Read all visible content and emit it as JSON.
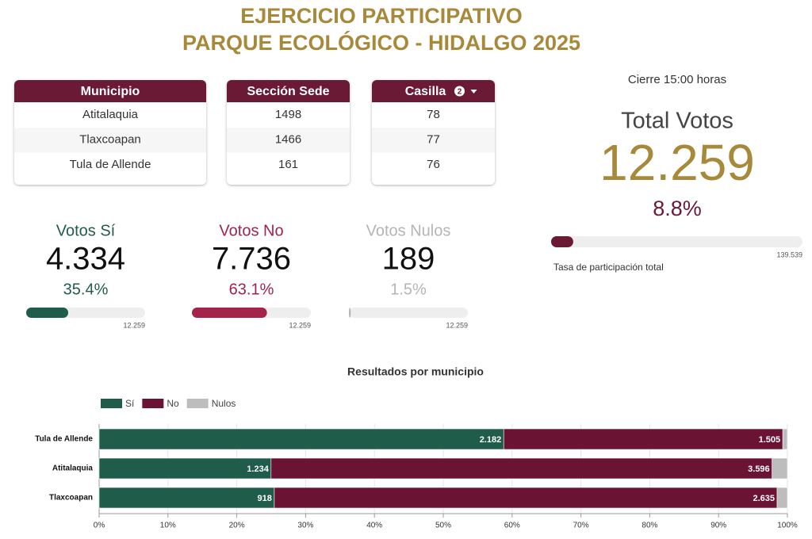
{
  "header": {
    "title_line1": "EJERCICIO PARTICIPATIVO",
    "title_line2": "PARQUE ECOLÓGICO - HIDALGO 2025"
  },
  "filters": [
    {
      "header": "Municipio",
      "rows": [
        "Atitalaquia",
        "Tlaxcoapan",
        "Tula de Allende"
      ]
    },
    {
      "header": "Sección Sede",
      "rows": [
        "1498",
        "1466",
        "161"
      ]
    },
    {
      "header": "Casilla",
      "badge": "2",
      "rows": [
        "78",
        "77",
        "76"
      ]
    }
  ],
  "summary": {
    "closing": "Cierre 15:00 horas",
    "total_label": "Total Votos",
    "total": {
      "value": 12259,
      "label": "12.259"
    },
    "participation": {
      "value": 8.8,
      "label": "8.8%"
    },
    "registry": {
      "value": 139539,
      "label": "139.539"
    },
    "participation_label": "Tasa de participación total"
  },
  "kpis": [
    {
      "name": "Votos Sí",
      "color": "#1f5c4a",
      "count": {
        "value": 4334,
        "label": "4.334"
      },
      "share": {
        "value": 35.4,
        "label": "35.4%"
      },
      "max": {
        "value": 12259,
        "label": "12.259"
      }
    },
    {
      "name": "Votos No",
      "color": "#a3234a",
      "count": {
        "value": 7736,
        "label": "7.736"
      },
      "share": {
        "value": 63.1,
        "label": "63.1%"
      },
      "max": {
        "value": 12259,
        "label": "12.259"
      }
    },
    {
      "name": "Votos Nulos",
      "color": "#b5b5b5",
      "count": {
        "value": 189,
        "label": "189"
      },
      "share": {
        "value": 1.5,
        "label": "1.5%"
      },
      "max": {
        "value": 12259,
        "label": "12.259"
      }
    }
  ],
  "chart_data": {
    "type": "bar",
    "orientation": "horizontal",
    "stacked": "percent",
    "title": "Resultados por municipio",
    "categories": [
      "Tula de Allende",
      "Atitalaquia",
      "Tlaxcoapan"
    ],
    "series": [
      {
        "name": "Sí",
        "color": "#1f5c4a",
        "values": [
          2182,
          1234,
          918
        ],
        "value_labels": [
          "2.182",
          "1.234",
          "918"
        ]
      },
      {
        "name": "No",
        "color": "#6b1333",
        "values": [
          1505,
          3596,
          2635
        ],
        "value_labels": [
          "1.505",
          "3.596",
          "2.635"
        ]
      },
      {
        "name": "Nulos",
        "color": "#bdbdbd",
        "values": [
          25,
          110,
          54
        ]
      }
    ],
    "xlim": [
      0,
      100
    ],
    "xticks": [
      {
        "value": 0,
        "label": "0%"
      },
      {
        "value": 10,
        "label": "10%"
      },
      {
        "value": 20,
        "label": "20%"
      },
      {
        "value": 30,
        "label": "30%"
      },
      {
        "value": 40,
        "label": "40%"
      },
      {
        "value": 50,
        "label": "50%"
      },
      {
        "value": 60,
        "label": "60%"
      },
      {
        "value": 70,
        "label": "70%"
      },
      {
        "value": 80,
        "label": "80%"
      },
      {
        "value": 90,
        "label": "90%"
      },
      {
        "value": 100,
        "label": "100%"
      }
    ],
    "grid": true,
    "legend": "top-left"
  }
}
